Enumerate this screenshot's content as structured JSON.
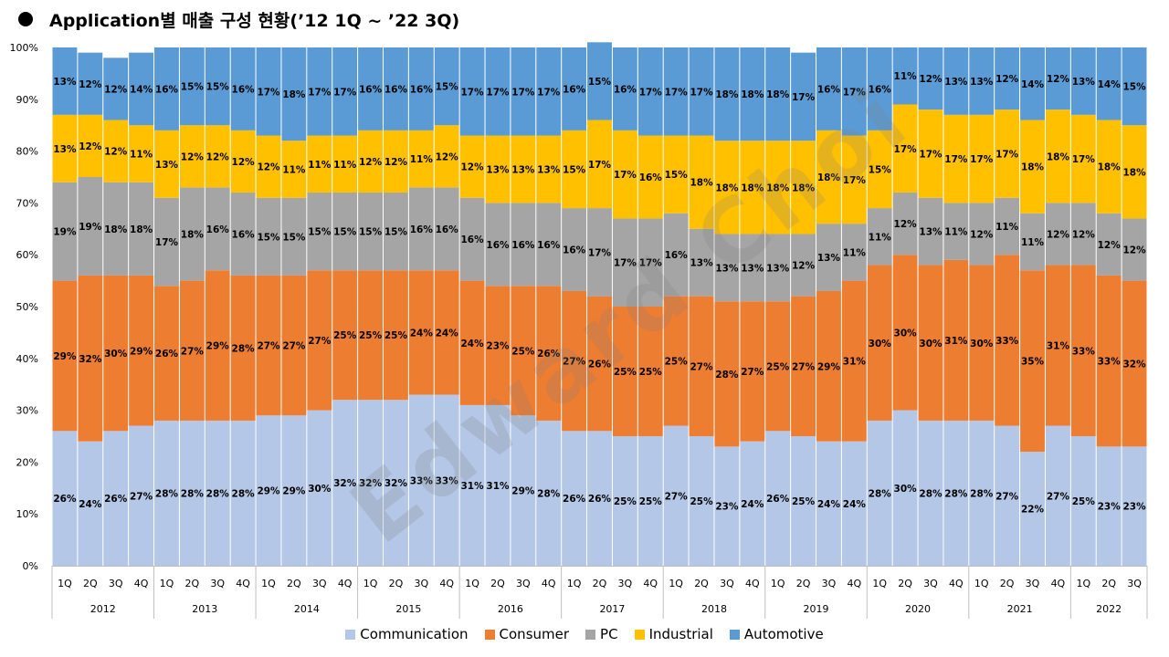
{
  "title": "Application별 매출 구성 현황(’12 1Q ~ ’22 3Q)",
  "watermark": "Edward Choi",
  "colors": {
    "Communication": "#b4c7e7",
    "Consumer": "#ed7d31",
    "PC": "#a5a5a5",
    "Industrial": "#ffc000",
    "Automotive": "#5b9bd5"
  },
  "chart_data": {
    "type": "bar",
    "stacked": true,
    "percent": true,
    "ylim": [
      0,
      100
    ],
    "yticks": [
      "0%",
      "10%",
      "20%",
      "30%",
      "40%",
      "50%",
      "60%",
      "70%",
      "80%",
      "90%",
      "100%"
    ],
    "years": [
      {
        "label": "2012",
        "quarters": [
          "1Q",
          "2Q",
          "3Q",
          "4Q"
        ]
      },
      {
        "label": "2013",
        "quarters": [
          "1Q",
          "2Q",
          "3Q",
          "4Q"
        ]
      },
      {
        "label": "2014",
        "quarters": [
          "1Q",
          "2Q",
          "3Q",
          "4Q"
        ]
      },
      {
        "label": "2015",
        "quarters": [
          "1Q",
          "2Q",
          "3Q",
          "4Q"
        ]
      },
      {
        "label": "2016",
        "quarters": [
          "1Q",
          "2Q",
          "3Q",
          "4Q"
        ]
      },
      {
        "label": "2017",
        "quarters": [
          "1Q",
          "2Q",
          "3Q",
          "4Q"
        ]
      },
      {
        "label": "2018",
        "quarters": [
          "1Q",
          "2Q",
          "3Q",
          "4Q"
        ]
      },
      {
        "label": "2019",
        "quarters": [
          "1Q",
          "2Q",
          "3Q",
          "4Q"
        ]
      },
      {
        "label": "2020",
        "quarters": [
          "1Q",
          "2Q",
          "3Q",
          "4Q"
        ]
      },
      {
        "label": "2021",
        "quarters": [
          "1Q",
          "2Q",
          "3Q",
          "4Q"
        ]
      },
      {
        "label": "2022",
        "quarters": [
          "1Q",
          "2Q",
          "3Q"
        ]
      }
    ],
    "series": [
      {
        "name": "Communication",
        "values": [
          26,
          24,
          26,
          27,
          28,
          28,
          28,
          28,
          29,
          29,
          30,
          32,
          32,
          32,
          33,
          33,
          31,
          31,
          29,
          28,
          26,
          26,
          25,
          25,
          27,
          25,
          23,
          24,
          26,
          25,
          24,
          24,
          28,
          30,
          28,
          28,
          28,
          27,
          22,
          27,
          25,
          23,
          23
        ]
      },
      {
        "name": "Consumer",
        "values": [
          29,
          32,
          30,
          29,
          26,
          27,
          29,
          28,
          27,
          27,
          27,
          25,
          25,
          25,
          24,
          24,
          24,
          23,
          25,
          26,
          27,
          26,
          25,
          25,
          25,
          27,
          28,
          27,
          25,
          27,
          29,
          31,
          30,
          30,
          30,
          31,
          30,
          33,
          35,
          31,
          33,
          33,
          32
        ]
      },
      {
        "name": "PC",
        "values": [
          19,
          19,
          18,
          18,
          17,
          18,
          16,
          16,
          15,
          15,
          15,
          15,
          15,
          15,
          16,
          16,
          16,
          16,
          16,
          16,
          16,
          17,
          17,
          17,
          16,
          13,
          13,
          13,
          13,
          12,
          13,
          11,
          11,
          12,
          13,
          11,
          12,
          11,
          11,
          12,
          12,
          12,
          12
        ]
      },
      {
        "name": "Industrial",
        "values": [
          13,
          12,
          12,
          11,
          13,
          12,
          12,
          12,
          12,
          11,
          11,
          11,
          12,
          12,
          11,
          12,
          12,
          13,
          13,
          13,
          15,
          17,
          17,
          16,
          15,
          18,
          18,
          18,
          18,
          18,
          18,
          17,
          15,
          17,
          17,
          17,
          17,
          17,
          18,
          18,
          17,
          18,
          18
        ]
      },
      {
        "name": "Automotive",
        "values": [
          13,
          12,
          12,
          14,
          16,
          15,
          15,
          16,
          17,
          18,
          17,
          17,
          16,
          16,
          16,
          15,
          17,
          17,
          17,
          17,
          16,
          15,
          16,
          17,
          17,
          17,
          18,
          18,
          18,
          17,
          16,
          17,
          16,
          11,
          12,
          13,
          13,
          12,
          14,
          12,
          13,
          14,
          15
        ]
      }
    ]
  }
}
